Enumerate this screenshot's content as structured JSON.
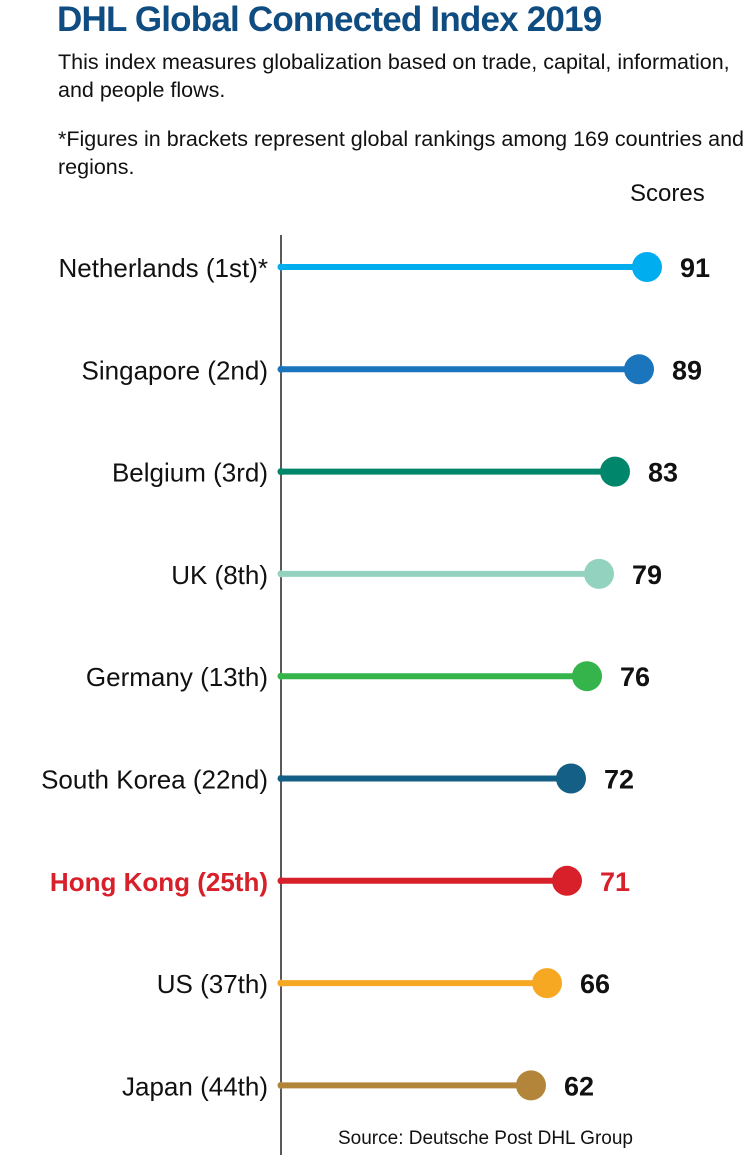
{
  "chart_data": {
    "type": "lollipop",
    "title": "DHL Global Connected Index 2019",
    "subtitle": "This index measures globalization based on trade, capital, information, and people flows.",
    "note": "*Figures in brackets represent global rankings among 169 countries and regions.",
    "value_header": "Scores",
    "source": "Source: Deutsche Post DHL Group",
    "categories": [
      "Netherlands (1st)*",
      "Singapore (2nd)",
      "Belgium (3rd)",
      "UK (8th)",
      "Germany (13th)",
      "South Korea (22nd)",
      "Hong Kong (25th)",
      "US (37th)",
      "Japan (44th)"
    ],
    "values": [
      91,
      89,
      83,
      79,
      76,
      72,
      71,
      66,
      62
    ],
    "colors": [
      "#00aeef",
      "#1b75bc",
      "#00876b",
      "#94d2c0",
      "#34b44a",
      "#135f85",
      "#d7202a",
      "#f7a823",
      "#b3853a"
    ],
    "highlight": "Hong Kong (25th)",
    "highlight_color": "#d7202a",
    "xlim": [
      0,
      100
    ]
  }
}
